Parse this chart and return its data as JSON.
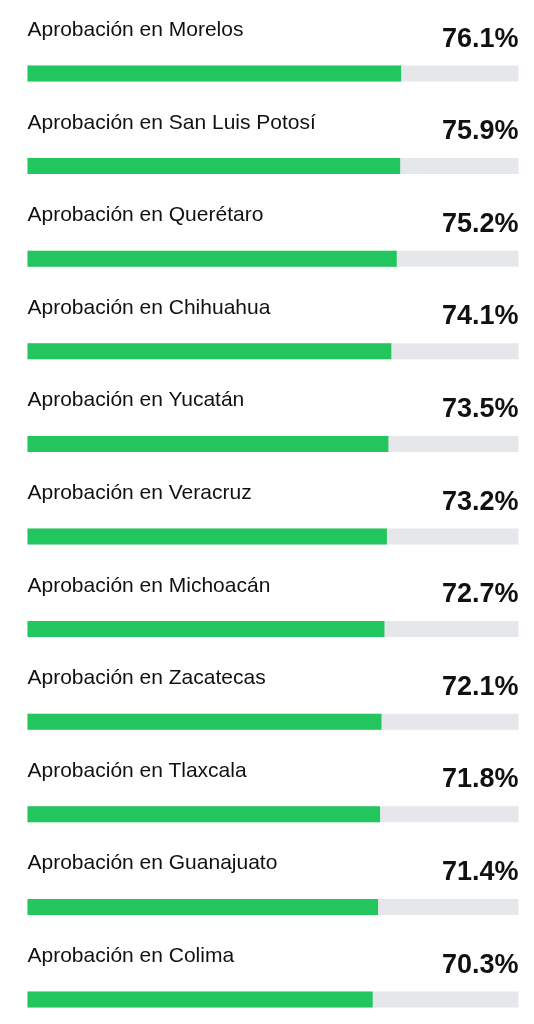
{
  "chart_data": {
    "type": "bar",
    "orientation": "horizontal",
    "categories": [
      "Aprobación en Morelos",
      "Aprobación en San Luis Potosí",
      "Aprobación en Querétaro",
      "Aprobación en Chihuahua",
      "Aprobación en Yucatán",
      "Aprobación en Veracruz",
      "Aprobación en Michoacán",
      "Aprobación en Zacatecas",
      "Aprobación en Tlaxcala",
      "Aprobación en Guanajuato",
      "Aprobación en Colima"
    ],
    "series": [
      {
        "color": "#22c55e",
        "values": [
          76.1,
          75.9,
          75.2,
          74.1,
          73.5,
          73.2,
          72.7,
          72.1,
          71.8,
          71.4,
          70.3
        ],
        "value_labels": [
          "76.1%",
          "75.9%",
          "75.2%",
          "74.1%",
          "73.5%",
          "73.2%",
          "72.7%",
          "72.1%",
          "71.8%",
          "71.4%",
          "70.3%"
        ]
      }
    ],
    "grid": false
  }
}
